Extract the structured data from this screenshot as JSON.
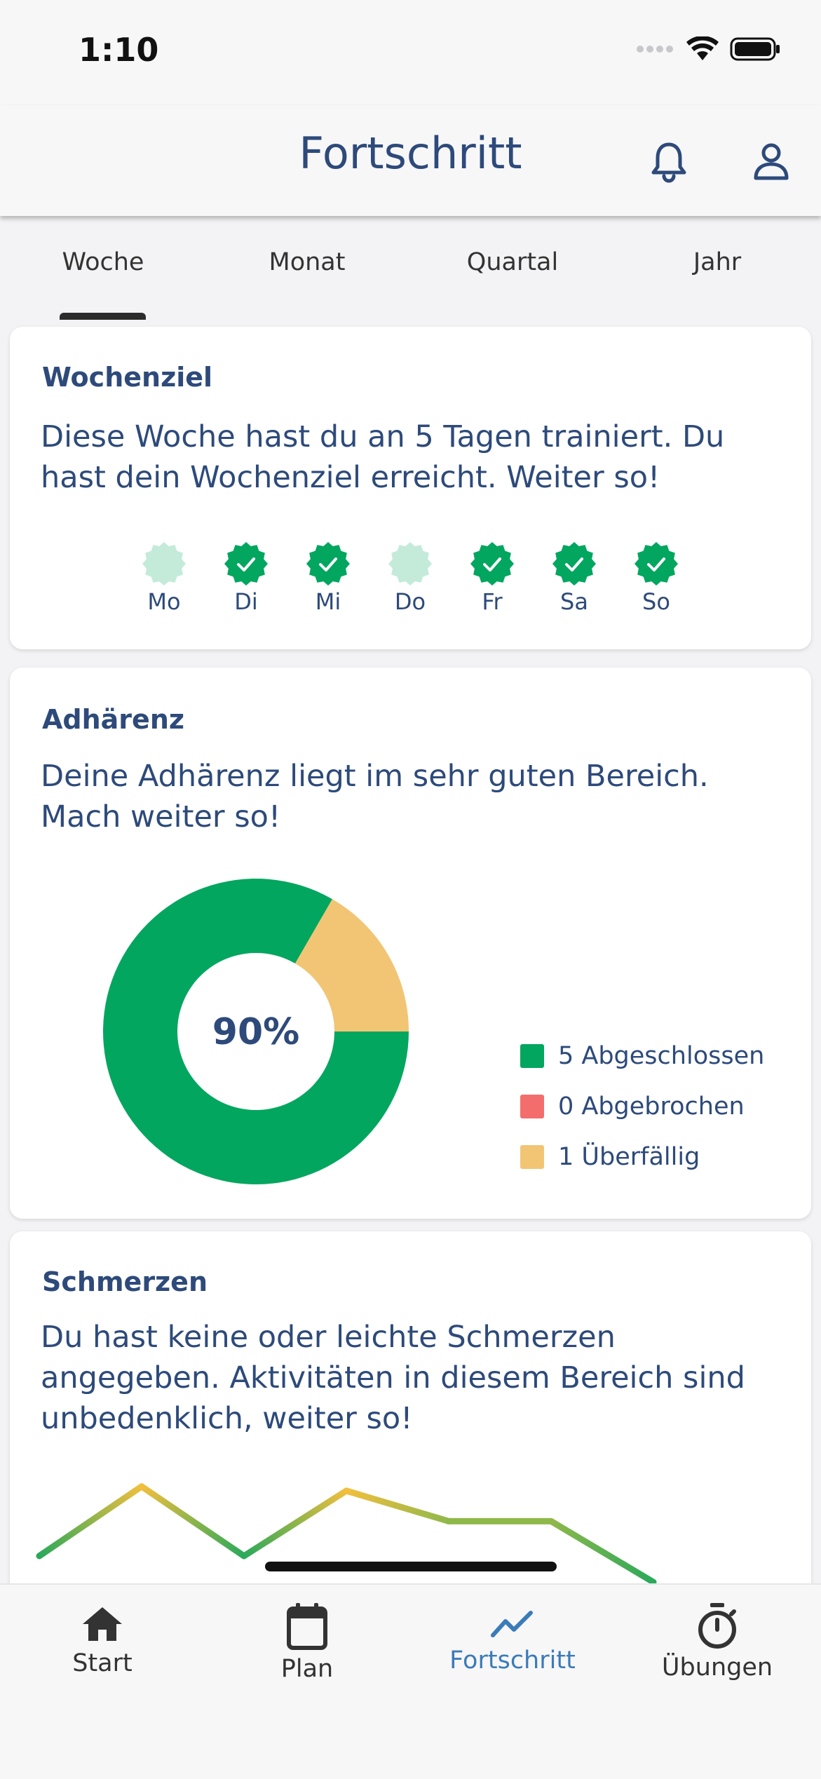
{
  "status_bar": {
    "time": "1:10"
  },
  "header": {
    "title": "Fortschritt"
  },
  "tabs": [
    {
      "label": "Woche",
      "active": true
    },
    {
      "label": "Monat",
      "active": false
    },
    {
      "label": "Quartal",
      "active": false
    },
    {
      "label": "Jahr",
      "active": false
    }
  ],
  "weekly_goal": {
    "title": "Wochenziel",
    "text": "Diese Woche hast du an 5 Tagen trainiert. Du hast dein Wochenziel erreicht. Weiter so!",
    "days": [
      {
        "label": "Mo",
        "done": false
      },
      {
        "label": "Di",
        "done": true
      },
      {
        "label": "Mi",
        "done": true
      },
      {
        "label": "Do",
        "done": false
      },
      {
        "label": "Fr",
        "done": true
      },
      {
        "label": "Sa",
        "done": true
      },
      {
        "label": "So",
        "done": true
      }
    ]
  },
  "adherence": {
    "title": "Adhärenz",
    "text": "Deine Adhärenz liegt im sehr guten Bereich. Mach weiter so!",
    "center_value": "90%",
    "legend": [
      {
        "label": "5 Abgeschlossen",
        "color": "#03a65f"
      },
      {
        "label": "0 Abgebrochen",
        "color": "#f46d6d"
      },
      {
        "label": "1 Überfällig",
        "color": "#f2c574"
      }
    ]
  },
  "pain": {
    "title": "Schmerzen",
    "text": "Du hast keine oder leichte Schmerzen angegeben. Aktivitäten in diesem Bereich sind unbedenklich, weiter so!"
  },
  "chart_data": [
    {
      "type": "pie",
      "categories": [
        "Abgeschlossen",
        "Abgebrochen",
        "Überfällig"
      ],
      "values": [
        5,
        0,
        1
      ],
      "colors": [
        "#03a65f",
        "#f46d6d",
        "#f2c574"
      ],
      "center_label": "90%"
    },
    {
      "type": "line",
      "x": [
        0,
        1,
        2,
        3,
        4,
        5,
        6
      ],
      "y": [
        1.0,
        2.6,
        1.0,
        2.5,
        1.8,
        1.8,
        0.4
      ],
      "color_low": "#2aa95a",
      "color_high": "#f2bf3d"
    }
  ],
  "bottom_nav": [
    {
      "label": "Start",
      "active": false
    },
    {
      "label": "Plan",
      "active": false
    },
    {
      "label": "Fortschritt",
      "active": true
    },
    {
      "label": "Übungen",
      "active": false
    }
  ]
}
